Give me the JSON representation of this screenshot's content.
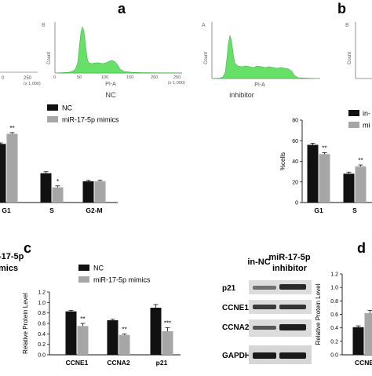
{
  "panel_labels": {
    "a": "a",
    "b": "b",
    "c": "c",
    "d": "d"
  },
  "flow": {
    "partial_left": {
      "ticks": [
        "0",
        "250"
      ],
      "scale": "(x 1,000)"
    },
    "nc": {
      "corner": "B",
      "ylabel": "Count",
      "ticks": [
        "0",
        "50",
        "100",
        "150",
        "200",
        "250"
      ],
      "scale": "(x 1,000)",
      "xlabel": "PI-A",
      "caption": "NC"
    },
    "inhibitor": {
      "corner": "A",
      "ylabel": "Count",
      "xlabel": "PI-A",
      "caption": "inhibitor"
    },
    "partial_right": {
      "corner": "B",
      "ylabel": "Count"
    },
    "fill_color": "#66e066"
  },
  "legend_mimics": {
    "items": [
      "NC",
      "miR-17-5p mimics"
    ]
  },
  "legend_inhibitor": {
    "items": [
      "in-",
      "mi"
    ]
  },
  "legend_c": {
    "items": [
      "NC",
      "miR-17-5p mimics"
    ]
  },
  "partial_text": {
    "line1": "-17-5p",
    "line2": "mics"
  },
  "western": {
    "col1": "in-NC",
    "col2_line1": "miR-17-5p",
    "col2_line2": "inhibitor",
    "rows": [
      "p21",
      "CCNE1",
      "CCNA2",
      "GAPDH"
    ]
  },
  "colors": {
    "black": "#111111",
    "gray": "#a6a6a6"
  },
  "chart_data": [
    {
      "type": "bar",
      "panel": "a",
      "categories": [
        "G1",
        "S",
        "G2-M"
      ],
      "series": [
        {
          "name": "NC",
          "values": [
            58,
            29,
            21
          ]
        },
        {
          "name": "miR-17-5p mimics",
          "values": [
            68,
            15,
            21
          ]
        }
      ],
      "errors": [
        [
          1,
          1.5,
          1
        ],
        [
          1.2,
          1.5,
          1.2
        ]
      ],
      "significance": [
        "**",
        "*",
        ""
      ]
    },
    {
      "type": "bar",
      "panel": "b",
      "ylabel": "%cells",
      "yticks": [
        "0",
        "20",
        "40",
        "60",
        "80"
      ],
      "ylim": [
        0,
        80
      ],
      "categories": [
        "G1",
        "S"
      ],
      "series": [
        {
          "name": "in-",
          "values": [
            56,
            28
          ]
        },
        {
          "name": "mi",
          "values": [
            47,
            35
          ]
        }
      ],
      "errors": [
        [
          1.5,
          1.5
        ],
        [
          1.5,
          1.5
        ]
      ],
      "significance": [
        "**",
        "**"
      ]
    },
    {
      "type": "bar",
      "panel": "c",
      "ylabel": "Relative Protein Level",
      "yticks": [
        "0.0",
        "0.2",
        "0.4",
        "0.6",
        "0.8",
        "1.0",
        "1.2"
      ],
      "ylim": [
        0,
        1.2
      ],
      "categories": [
        "CCNE1",
        "CCNA2",
        "p21"
      ],
      "series": [
        {
          "name": "NC",
          "values": [
            0.83,
            0.66,
            0.9
          ]
        },
        {
          "name": "miR-17-5p mimics",
          "values": [
            0.55,
            0.38,
            0.45
          ]
        }
      ],
      "errors": [
        [
          0.02,
          0.02,
          0.06
        ],
        [
          0.05,
          0.02,
          0.07
        ]
      ],
      "significance": [
        "**",
        "**",
        "***"
      ]
    },
    {
      "type": "bar",
      "panel": "d",
      "ylabel": "Relative Protein Level",
      "yticks": [
        "0.0",
        "0.2",
        "0.4",
        "0.6",
        "0.8",
        "1.0",
        "1.2"
      ],
      "ylim": [
        0,
        1.2
      ],
      "categories": [
        "CCNE"
      ],
      "series": [
        {
          "name": "in-",
          "values": [
            0.41
          ]
        },
        {
          "name": "mi",
          "values": [
            0.62
          ]
        }
      ],
      "errors": [
        [
          0.02
        ],
        [
          0.04
        ]
      ],
      "significance": [
        ""
      ]
    }
  ]
}
